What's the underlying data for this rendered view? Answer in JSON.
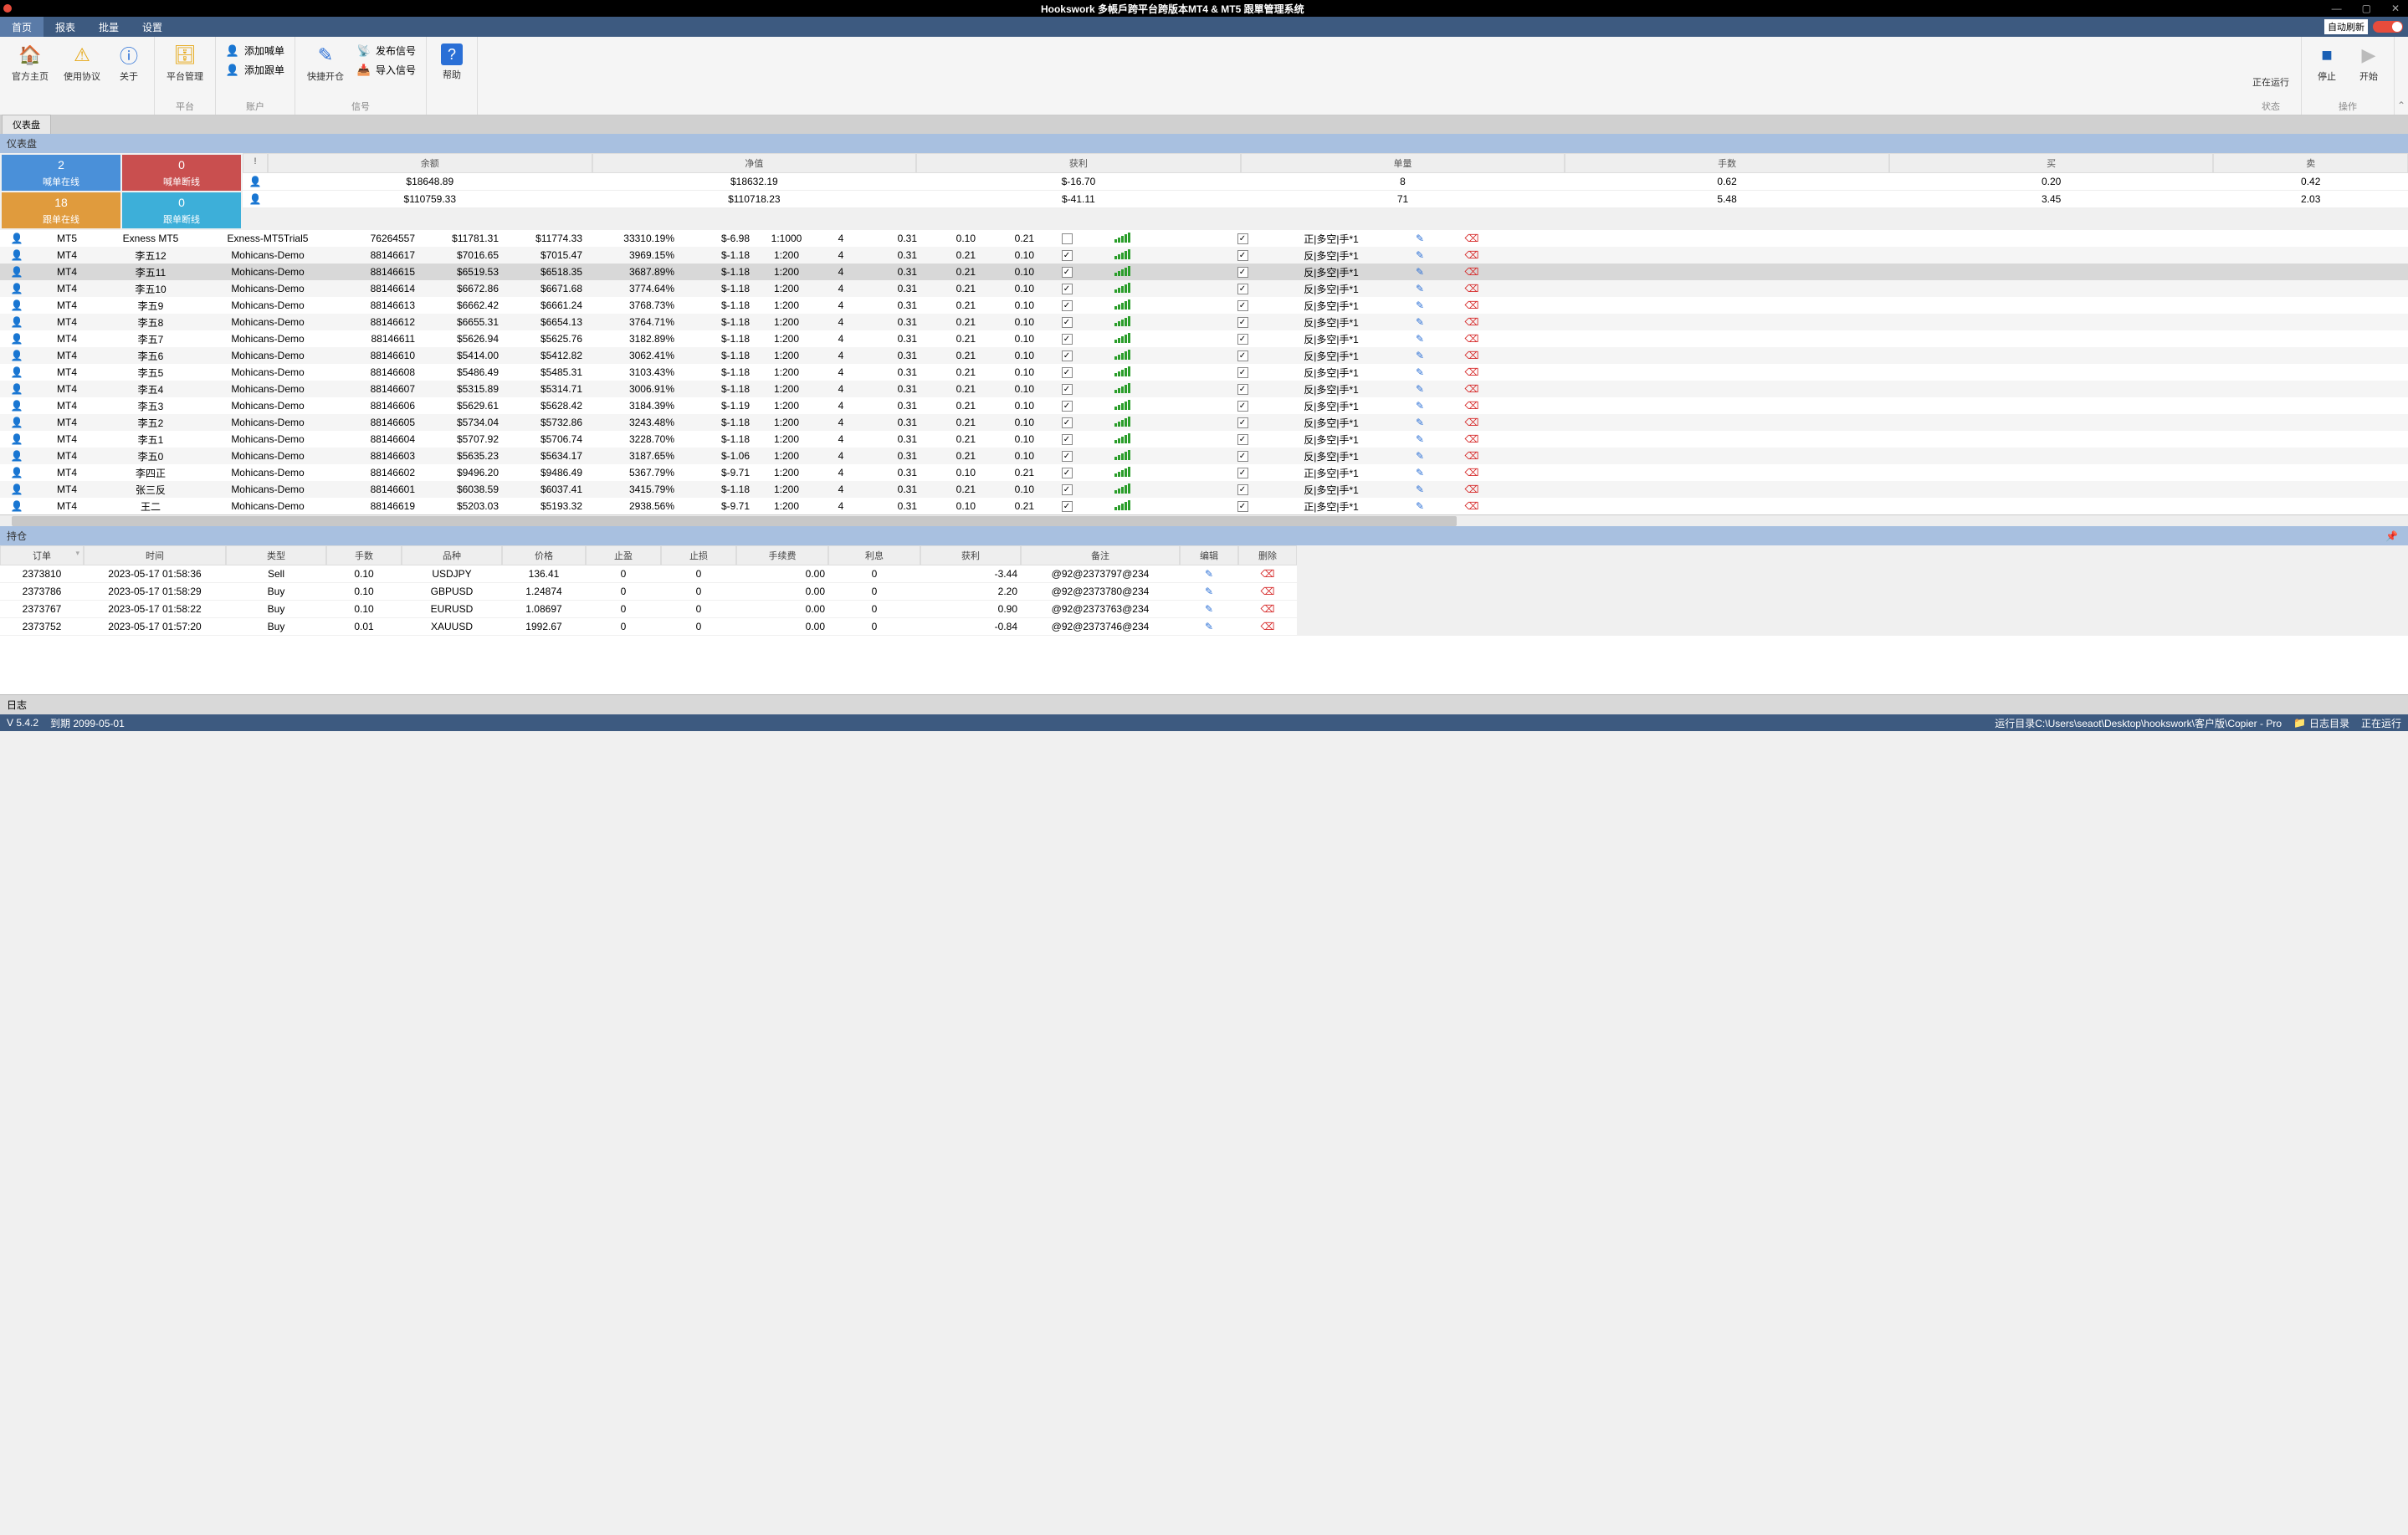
{
  "title": "Hookswork 多帳戶跨平台跨版本MT4 & MT5 跟單管理系统",
  "menu": {
    "home": "首页",
    "report": "报表",
    "batch": "批量",
    "settings": "设置",
    "autorefresh": "自动刷新"
  },
  "ribbon": {
    "home": "官方主页",
    "agree": "使用协议",
    "about": "关于",
    "platmgr": "平台管理",
    "platgrp": "平台",
    "addmaster": "添加喊单",
    "addfollow": "添加跟单",
    "acctgrp": "账户",
    "quickopen": "快捷开仓",
    "pubsig": "发布信号",
    "impsig": "导入信号",
    "siggrp": "信号",
    "help": "帮助",
    "running": "正在运行",
    "stop": "停止",
    "start": "开始",
    "statgrp": "状态",
    "opgrp": "操作"
  },
  "tab": {
    "dashboard": "仪表盘"
  },
  "dashpanel": "仪表盘",
  "tiles": {
    "t1n": "2",
    "t1l": "喊单在线",
    "t2n": "0",
    "t2l": "喊单断线",
    "t3n": "18",
    "t3l": "跟单在线",
    "t4n": "0",
    "t4l": "跟单断线"
  },
  "sumhead": {
    "c0": "!",
    "c1": "余额",
    "c2": "净值",
    "c3": "获利",
    "c4": "单量",
    "c5": "手数",
    "c6": "买",
    "c7": "卖"
  },
  "sumrows": [
    {
      "bal": "$18648.89",
      "eq": "$18632.19",
      "pl": "$-16.70",
      "qty": "8",
      "lots": "0.62",
      "buy": "0.20",
      "sell": "0.42"
    },
    {
      "bal": "$110759.33",
      "eq": "$110718.23",
      "pl": "$-41.11",
      "qty": "71",
      "lots": "5.48",
      "buy": "3.45",
      "sell": "2.03"
    }
  ],
  "accts": [
    {
      "plat": "MT5",
      "name": "Exness MT5",
      "srv": "Exness-MT5Trial5",
      "id": "76264557",
      "bal": "$11781.31",
      "eq": "$11774.33",
      "pct": "33310.19%",
      "pl": "$-6.98",
      "lev": "1:1000",
      "a": "4",
      "b": "0.31",
      "c": "0.10",
      "d": "0.21",
      "ck1": false,
      "ck2": true,
      "mode": "正|多空|手*1",
      "sel": false
    },
    {
      "plat": "MT4",
      "name": "李五12",
      "srv": "Mohicans-Demo",
      "id": "88146617",
      "bal": "$7016.65",
      "eq": "$7015.47",
      "pct": "3969.15%",
      "pl": "$-1.18",
      "lev": "1:200",
      "a": "4",
      "b": "0.31",
      "c": "0.21",
      "d": "0.10",
      "ck1": true,
      "ck2": true,
      "mode": "反|多空|手*1",
      "sel": false
    },
    {
      "plat": "MT4",
      "name": "李五11",
      "srv": "Mohicans-Demo",
      "id": "88146615",
      "bal": "$6519.53",
      "eq": "$6518.35",
      "pct": "3687.89%",
      "pl": "$-1.18",
      "lev": "1:200",
      "a": "4",
      "b": "0.31",
      "c": "0.21",
      "d": "0.10",
      "ck1": true,
      "ck2": true,
      "mode": "反|多空|手*1",
      "sel": true
    },
    {
      "plat": "MT4",
      "name": "李五10",
      "srv": "Mohicans-Demo",
      "id": "88146614",
      "bal": "$6672.86",
      "eq": "$6671.68",
      "pct": "3774.64%",
      "pl": "$-1.18",
      "lev": "1:200",
      "a": "4",
      "b": "0.31",
      "c": "0.21",
      "d": "0.10",
      "ck1": true,
      "ck2": true,
      "mode": "反|多空|手*1",
      "sel": false
    },
    {
      "plat": "MT4",
      "name": "李五9",
      "srv": "Mohicans-Demo",
      "id": "88146613",
      "bal": "$6662.42",
      "eq": "$6661.24",
      "pct": "3768.73%",
      "pl": "$-1.18",
      "lev": "1:200",
      "a": "4",
      "b": "0.31",
      "c": "0.21",
      "d": "0.10",
      "ck1": true,
      "ck2": true,
      "mode": "反|多空|手*1",
      "sel": false
    },
    {
      "plat": "MT4",
      "name": "李五8",
      "srv": "Mohicans-Demo",
      "id": "88146612",
      "bal": "$6655.31",
      "eq": "$6654.13",
      "pct": "3764.71%",
      "pl": "$-1.18",
      "lev": "1:200",
      "a": "4",
      "b": "0.31",
      "c": "0.21",
      "d": "0.10",
      "ck1": true,
      "ck2": true,
      "mode": "反|多空|手*1",
      "sel": false
    },
    {
      "plat": "MT4",
      "name": "李五7",
      "srv": "Mohicans-Demo",
      "id": "88146611",
      "bal": "$5626.94",
      "eq": "$5625.76",
      "pct": "3182.89%",
      "pl": "$-1.18",
      "lev": "1:200",
      "a": "4",
      "b": "0.31",
      "c": "0.21",
      "d": "0.10",
      "ck1": true,
      "ck2": true,
      "mode": "反|多空|手*1",
      "sel": false
    },
    {
      "plat": "MT4",
      "name": "李五6",
      "srv": "Mohicans-Demo",
      "id": "88146610",
      "bal": "$5414.00",
      "eq": "$5412.82",
      "pct": "3062.41%",
      "pl": "$-1.18",
      "lev": "1:200",
      "a": "4",
      "b": "0.31",
      "c": "0.21",
      "d": "0.10",
      "ck1": true,
      "ck2": true,
      "mode": "反|多空|手*1",
      "sel": false
    },
    {
      "plat": "MT4",
      "name": "李五5",
      "srv": "Mohicans-Demo",
      "id": "88146608",
      "bal": "$5486.49",
      "eq": "$5485.31",
      "pct": "3103.43%",
      "pl": "$-1.18",
      "lev": "1:200",
      "a": "4",
      "b": "0.31",
      "c": "0.21",
      "d": "0.10",
      "ck1": true,
      "ck2": true,
      "mode": "反|多空|手*1",
      "sel": false
    },
    {
      "plat": "MT4",
      "name": "李五4",
      "srv": "Mohicans-Demo",
      "id": "88146607",
      "bal": "$5315.89",
      "eq": "$5314.71",
      "pct": "3006.91%",
      "pl": "$-1.18",
      "lev": "1:200",
      "a": "4",
      "b": "0.31",
      "c": "0.21",
      "d": "0.10",
      "ck1": true,
      "ck2": true,
      "mode": "反|多空|手*1",
      "sel": false
    },
    {
      "plat": "MT4",
      "name": "李五3",
      "srv": "Mohicans-Demo",
      "id": "88146606",
      "bal": "$5629.61",
      "eq": "$5628.42",
      "pct": "3184.39%",
      "pl": "$-1.19",
      "lev": "1:200",
      "a": "4",
      "b": "0.31",
      "c": "0.21",
      "d": "0.10",
      "ck1": true,
      "ck2": true,
      "mode": "反|多空|手*1",
      "sel": false
    },
    {
      "plat": "MT4",
      "name": "李五2",
      "srv": "Mohicans-Demo",
      "id": "88146605",
      "bal": "$5734.04",
      "eq": "$5732.86",
      "pct": "3243.48%",
      "pl": "$-1.18",
      "lev": "1:200",
      "a": "4",
      "b": "0.31",
      "c": "0.21",
      "d": "0.10",
      "ck1": true,
      "ck2": true,
      "mode": "反|多空|手*1",
      "sel": false
    },
    {
      "plat": "MT4",
      "name": "李五1",
      "srv": "Mohicans-Demo",
      "id": "88146604",
      "bal": "$5707.92",
      "eq": "$5706.74",
      "pct": "3228.70%",
      "pl": "$-1.18",
      "lev": "1:200",
      "a": "4",
      "b": "0.31",
      "c": "0.21",
      "d": "0.10",
      "ck1": true,
      "ck2": true,
      "mode": "反|多空|手*1",
      "sel": false
    },
    {
      "plat": "MT4",
      "name": "李五0",
      "srv": "Mohicans-Demo",
      "id": "88146603",
      "bal": "$5635.23",
      "eq": "$5634.17",
      "pct": "3187.65%",
      "pl": "$-1.06",
      "lev": "1:200",
      "a": "4",
      "b": "0.31",
      "c": "0.21",
      "d": "0.10",
      "ck1": true,
      "ck2": true,
      "mode": "反|多空|手*1",
      "sel": false
    },
    {
      "plat": "MT4",
      "name": "李四正",
      "srv": "Mohicans-Demo",
      "id": "88146602",
      "bal": "$9496.20",
      "eq": "$9486.49",
      "pct": "5367.79%",
      "pl": "$-9.71",
      "lev": "1:200",
      "a": "4",
      "b": "0.31",
      "c": "0.10",
      "d": "0.21",
      "ck1": true,
      "ck2": true,
      "mode": "正|多空|手*1",
      "sel": false
    },
    {
      "plat": "MT4",
      "name": "张三反",
      "srv": "Mohicans-Demo",
      "id": "88146601",
      "bal": "$6038.59",
      "eq": "$6037.41",
      "pct": "3415.79%",
      "pl": "$-1.18",
      "lev": "1:200",
      "a": "4",
      "b": "0.31",
      "c": "0.21",
      "d": "0.10",
      "ck1": true,
      "ck2": true,
      "mode": "反|多空|手*1",
      "sel": false
    },
    {
      "plat": "MT4",
      "name": "王二",
      "srv": "Mohicans-Demo",
      "id": "88146619",
      "bal": "$5203.03",
      "eq": "$5193.32",
      "pct": "2938.56%",
      "pl": "$-9.71",
      "lev": "1:200",
      "a": "4",
      "b": "0.31",
      "c": "0.10",
      "d": "0.21",
      "ck1": true,
      "ck2": true,
      "mode": "正|多空|手*1",
      "sel": false
    }
  ],
  "pospanel": "持仓",
  "poshead": {
    "c0": "订单",
    "c1": "时间",
    "c2": "类型",
    "c3": "手数",
    "c4": "品种",
    "c5": "价格",
    "c6": "止盈",
    "c7": "止损",
    "c8": "手续费",
    "c9": "利息",
    "c10": "获利",
    "c11": "备注",
    "c12": "编辑",
    "c13": "删除"
  },
  "posrows": [
    {
      "ord": "2373810",
      "time": "2023-05-17 01:58:36",
      "type": "Sell",
      "lots": "0.10",
      "sym": "USDJPY",
      "price": "136.41",
      "tp": "0",
      "sl": "0",
      "fee": "0.00",
      "swap": "0",
      "pl": "-3.44",
      "note": "@92@2373797@234"
    },
    {
      "ord": "2373786",
      "time": "2023-05-17 01:58:29",
      "type": "Buy",
      "lots": "0.10",
      "sym": "GBPUSD",
      "price": "1.24874",
      "tp": "0",
      "sl": "0",
      "fee": "0.00",
      "swap": "0",
      "pl": "2.20",
      "note": "@92@2373780@234"
    },
    {
      "ord": "2373767",
      "time": "2023-05-17 01:58:22",
      "type": "Buy",
      "lots": "0.10",
      "sym": "EURUSD",
      "price": "1.08697",
      "tp": "0",
      "sl": "0",
      "fee": "0.00",
      "swap": "0",
      "pl": "0.90",
      "note": "@92@2373763@234"
    },
    {
      "ord": "2373752",
      "time": "2023-05-17 01:57:20",
      "type": "Buy",
      "lots": "0.01",
      "sym": "XAUUSD",
      "price": "1992.67",
      "tp": "0",
      "sl": "0",
      "fee": "0.00",
      "swap": "0",
      "pl": "-0.84",
      "note": "@92@2373746@234"
    }
  ],
  "log": "日志",
  "status": {
    "ver": "V 5.4.2",
    "exp": "到期 2099-05-01",
    "cwd": "运行目录C:\\Users\\seaot\\Desktop\\hookswork\\客户版\\Copier - Pro",
    "logdir": "日志目录",
    "run": "正在运行"
  }
}
